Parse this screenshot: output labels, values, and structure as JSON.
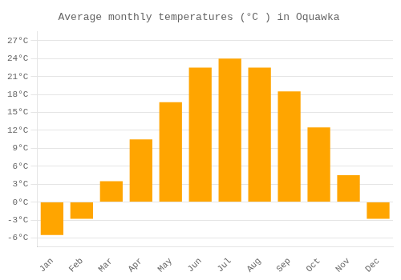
{
  "chart_data": {
    "type": "bar",
    "title": "Average monthly temperatures (°C ) in Oquawka",
    "categories": [
      "Jan",
      "Feb",
      "Mar",
      "Apr",
      "May",
      "Jun",
      "Jul",
      "Aug",
      "Sep",
      "Oct",
      "Nov",
      "Dec"
    ],
    "values": [
      -5.5,
      -2.8,
      3.5,
      10.5,
      16.7,
      22.5,
      24.0,
      22.5,
      18.5,
      12.5,
      4.5,
      -2.8
    ],
    "color": "#FFA500",
    "ylim": [
      -7.5,
      28.5
    ],
    "yticks": [
      {
        "value": -6,
        "label": "-6°C"
      },
      {
        "value": -3,
        "label": "-3°C"
      },
      {
        "value": 0,
        "label": "0°C"
      },
      {
        "value": 3,
        "label": "3°C"
      },
      {
        "value": 6,
        "label": "6°C"
      },
      {
        "value": 9,
        "label": "9°C"
      },
      {
        "value": 12,
        "label": "12°C"
      },
      {
        "value": 15,
        "label": "15°C"
      },
      {
        "value": 18,
        "label": "18°C"
      },
      {
        "value": 21,
        "label": "21°C"
      },
      {
        "value": 24,
        "label": "24°C"
      },
      {
        "value": 27,
        "label": "27°C"
      }
    ],
    "grid": true
  }
}
